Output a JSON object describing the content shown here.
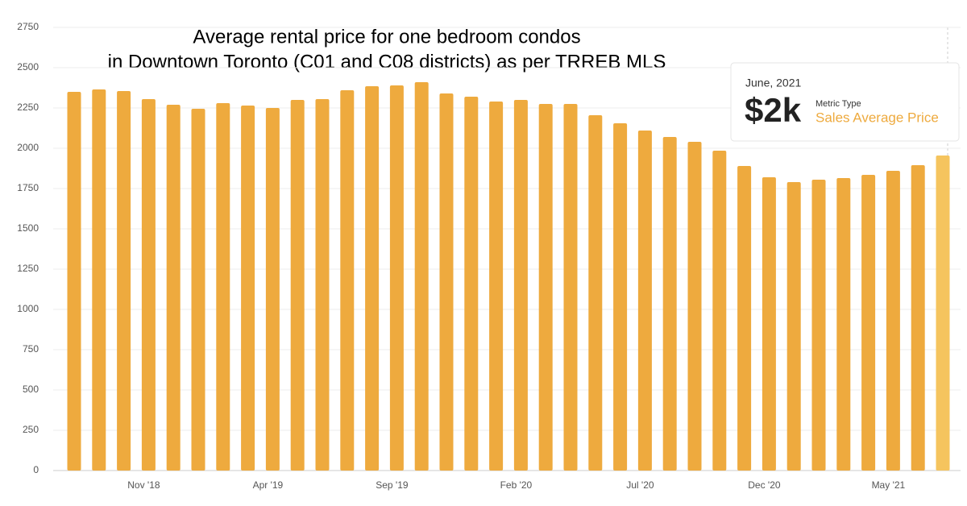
{
  "chart_data": {
    "type": "bar",
    "title_lines": [
      "Average rental price for one bedroom condos",
      "in Downtown Toronto (C01 and C08 districts) as per TRREB MLS"
    ],
    "categories": [
      null,
      null,
      null,
      "Nov '18",
      null,
      null,
      null,
      null,
      "Apr '19",
      null,
      null,
      null,
      null,
      "Sep '19",
      null,
      null,
      null,
      null,
      "Feb '20",
      null,
      null,
      null,
      null,
      "Jul '20",
      null,
      null,
      null,
      null,
      "Dec '20",
      null,
      null,
      null,
      null,
      "May '21",
      null,
      null
    ],
    "values": [
      2350,
      2365,
      2355,
      2305,
      2270,
      2245,
      2280,
      2265,
      2250,
      2300,
      2305,
      2360,
      2385,
      2390,
      2410,
      2340,
      2320,
      2290,
      2300,
      2275,
      2275,
      2205,
      2155,
      2110,
      2070,
      2040,
      1985,
      1890,
      1820,
      1790,
      1805,
      1815,
      1835,
      1860,
      1895,
      1955
    ],
    "colors": [
      "#eeaa3e",
      "#eeaa3e",
      "#eeaa3e",
      "#eeaa3e",
      "#eeaa3e",
      "#eeaa3e",
      "#eeaa3e",
      "#eeaa3e",
      "#eeaa3e",
      "#eeaa3e",
      "#eeaa3e",
      "#eeaa3e",
      "#eeaa3e",
      "#eeaa3e",
      "#eeaa3e",
      "#eeaa3e",
      "#eeaa3e",
      "#eeaa3e",
      "#eeaa3e",
      "#eeaa3e",
      "#eeaa3e",
      "#eeaa3e",
      "#eeaa3e",
      "#eeaa3e",
      "#eeaa3e",
      "#eeaa3e",
      "#eeaa3e",
      "#eeaa3e",
      "#eeaa3e",
      "#eeaa3e",
      "#eeaa3e",
      "#eeaa3e",
      "#eeaa3e",
      "#eeaa3e",
      "#eeaa3e",
      "#f5c45e"
    ],
    "ylim": [
      0,
      2750
    ],
    "yticks": [
      0,
      250,
      500,
      750,
      1000,
      1250,
      1500,
      1750,
      2000,
      2250,
      2500,
      2750
    ],
    "grid": true,
    "tooltip": {
      "date": "June, 2021",
      "value": "$2k",
      "metric_label": "Metric Type",
      "metric": "Sales Average Price"
    }
  }
}
